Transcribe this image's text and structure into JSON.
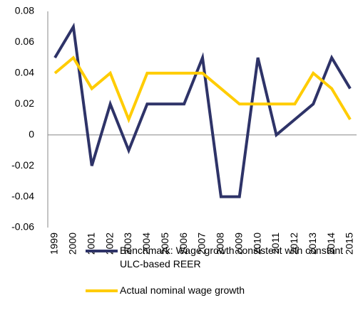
{
  "chart_data": {
    "type": "line",
    "categories": [
      "1999",
      "2000",
      "2001",
      "2002",
      "2003",
      "2004",
      "2005",
      "2006",
      "2007",
      "2008",
      "2009",
      "2010",
      "2011",
      "2012",
      "2013",
      "2014",
      "2015"
    ],
    "series": [
      {
        "name": "Benchmark: Wage growth consistent with constant ULC-based REER",
        "color": "#2e3368",
        "values": [
          0.05,
          0.07,
          -0.02,
          0.02,
          -0.01,
          0.02,
          0.02,
          0.02,
          0.05,
          -0.04,
          -0.04,
          0.05,
          0.0,
          0.01,
          0.02,
          0.05,
          0.03
        ]
      },
      {
        "name": "Actual nominal wage growth",
        "color": "#ffcc00",
        "values": [
          0.04,
          0.05,
          0.03,
          0.04,
          0.01,
          0.04,
          0.04,
          0.04,
          0.04,
          0.03,
          0.02,
          0.02,
          0.02,
          0.02,
          0.04,
          0.03,
          0.01
        ]
      }
    ],
    "ylim": [
      -0.06,
      0.08
    ],
    "yticks": [
      -0.06,
      -0.04,
      -0.02,
      0,
      0.02,
      0.04,
      0.06,
      0.08
    ],
    "grid": false
  }
}
